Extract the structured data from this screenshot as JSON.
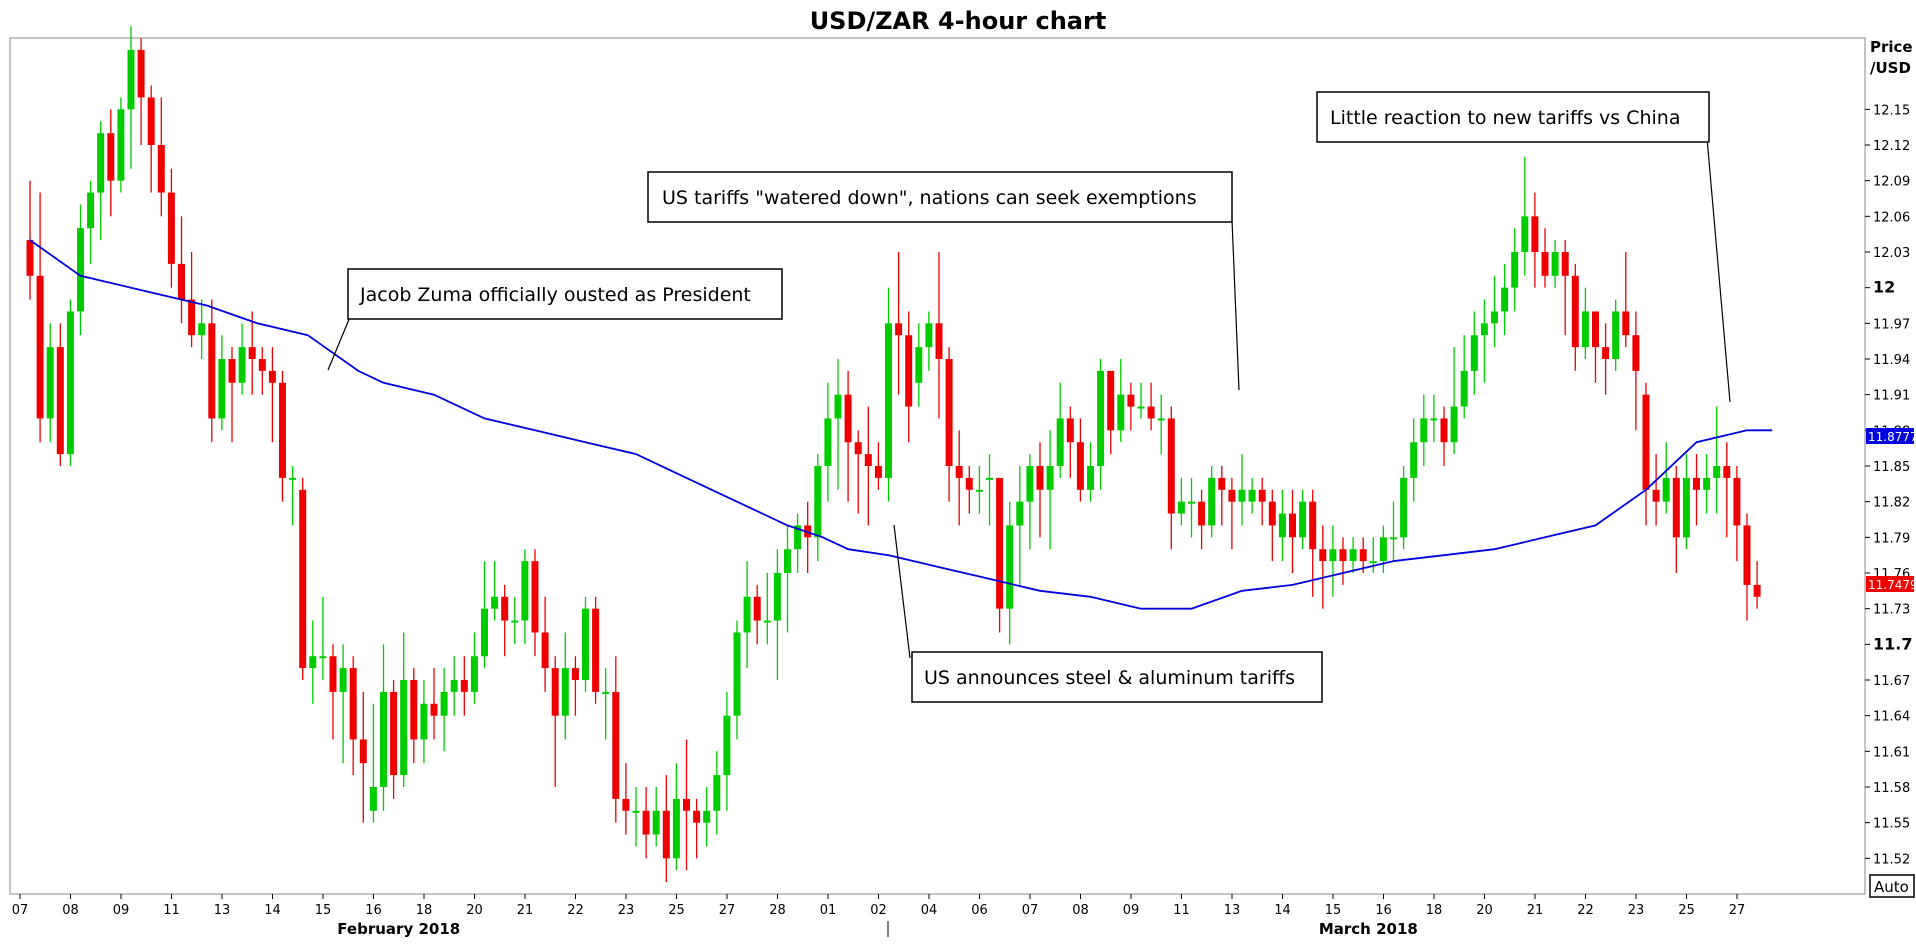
{
  "chart_data": {
    "type": "candlestick",
    "title": "USD/ZAR 4-hour chart",
    "ylabel": "Price\n/USD",
    "ylim": [
      11.49,
      12.21
    ],
    "y_ticks": [
      "12.15",
      "12.12",
      "12.09",
      "12.06",
      "12.03",
      "12",
      "11.97",
      "11.94",
      "11.91",
      "11.88",
      "11.85",
      "11.82",
      "11.79",
      "11.76",
      "11.73",
      "11.7",
      "11.67",
      "11.64",
      "11.61",
      "11.58",
      "11.55",
      "11.52"
    ],
    "x_ticks": [
      "07",
      "08",
      "09",
      "11",
      "13",
      "14",
      "15",
      "16",
      "18",
      "20",
      "21",
      "22",
      "23",
      "25",
      "27",
      "28",
      "01",
      "02",
      "04",
      "06",
      "07",
      "08",
      "09",
      "11",
      "13",
      "14",
      "15",
      "16",
      "18",
      "20",
      "21",
      "22",
      "23",
      "25",
      "27"
    ],
    "months": [
      {
        "label": "February 2018",
        "tick_index": 7.5
      },
      {
        "label": "March 2018",
        "tick_index": 26.7
      }
    ],
    "moving_average": {
      "color": "#0000dd",
      "points": [
        [
          0,
          12.04
        ],
        [
          1,
          12.01
        ],
        [
          2,
          12.0
        ],
        [
          3,
          11.99
        ],
        [
          3.5,
          11.985
        ],
        [
          4.5,
          11.97
        ],
        [
          5.5,
          11.96
        ],
        [
          6.5,
          11.93
        ],
        [
          7,
          11.92
        ],
        [
          8,
          11.91
        ],
        [
          9,
          11.89
        ],
        [
          10,
          11.88
        ],
        [
          11,
          11.87
        ],
        [
          12,
          11.86
        ],
        [
          13,
          11.84
        ],
        [
          14,
          11.82
        ],
        [
          15,
          11.8
        ],
        [
          15.7,
          11.79
        ],
        [
          16.2,
          11.78
        ],
        [
          17,
          11.775
        ],
        [
          18,
          11.765
        ],
        [
          19,
          11.755
        ],
        [
          20,
          11.745
        ],
        [
          21,
          11.74
        ],
        [
          22,
          11.73
        ],
        [
          23,
          11.73
        ],
        [
          24,
          11.745
        ],
        [
          25,
          11.75
        ],
        [
          26,
          11.76
        ],
        [
          27,
          11.77
        ],
        [
          28,
          11.775
        ],
        [
          29,
          11.78
        ],
        [
          30,
          11.79
        ],
        [
          31,
          11.8
        ],
        [
          32,
          11.83
        ],
        [
          33,
          11.87
        ],
        [
          34,
          11.88
        ],
        [
          34.5,
          11.88
        ]
      ],
      "last_value": "11.8777"
    },
    "last_price": "11.7479",
    "candles": [
      [
        0.0,
        12.04,
        12.01,
        12.09,
        11.99
      ],
      [
        0.2,
        12.01,
        11.89,
        12.08,
        11.87
      ],
      [
        0.4,
        11.89,
        11.95,
        11.97,
        11.87
      ],
      [
        0.6,
        11.95,
        11.86,
        11.97,
        11.85
      ],
      [
        0.8,
        11.86,
        11.98,
        11.99,
        11.85
      ],
      [
        1.0,
        11.98,
        12.05,
        12.07,
        11.96
      ],
      [
        1.2,
        12.05,
        12.08,
        12.09,
        12.02
      ],
      [
        1.4,
        12.08,
        12.13,
        12.14,
        12.04
      ],
      [
        1.6,
        12.13,
        12.09,
        12.15,
        12.06
      ],
      [
        1.8,
        12.09,
        12.15,
        12.16,
        12.08
      ],
      [
        2.0,
        12.15,
        12.2,
        12.22,
        12.1
      ],
      [
        2.2,
        12.2,
        12.16,
        12.21,
        12.12
      ],
      [
        2.4,
        12.16,
        12.12,
        12.17,
        12.08
      ],
      [
        2.6,
        12.12,
        12.08,
        12.16,
        12.06
      ],
      [
        2.8,
        12.08,
        12.02,
        12.1,
        12.0
      ],
      [
        3.0,
        12.02,
        11.99,
        12.06,
        11.97
      ],
      [
        3.2,
        11.99,
        11.96,
        12.03,
        11.95
      ],
      [
        3.4,
        11.96,
        11.97,
        11.99,
        11.94
      ],
      [
        3.6,
        11.97,
        11.89,
        11.99,
        11.87
      ],
      [
        3.8,
        11.89,
        11.94,
        11.96,
        11.88
      ],
      [
        4.0,
        11.94,
        11.92,
        11.95,
        11.87
      ],
      [
        4.2,
        11.92,
        11.95,
        11.97,
        11.91
      ],
      [
        4.4,
        11.95,
        11.94,
        11.98,
        11.91
      ],
      [
        4.6,
        11.94,
        11.93,
        11.95,
        11.91
      ],
      [
        4.8,
        11.93,
        11.92,
        11.95,
        11.87
      ],
      [
        5.0,
        11.92,
        11.84,
        11.93,
        11.82
      ],
      [
        5.2,
        11.84,
        11.84,
        11.85,
        11.8
      ],
      [
        5.4,
        11.83,
        11.68,
        11.84,
        11.67
      ],
      [
        5.6,
        11.68,
        11.69,
        11.72,
        11.65
      ],
      [
        5.8,
        11.69,
        11.69,
        11.74,
        11.67
      ],
      [
        6.0,
        11.69,
        11.66,
        11.7,
        11.62
      ],
      [
        6.2,
        11.66,
        11.68,
        11.7,
        11.6
      ],
      [
        6.4,
        11.68,
        11.62,
        11.69,
        11.59
      ],
      [
        6.6,
        11.62,
        11.6,
        11.66,
        11.55
      ],
      [
        6.8,
        11.56,
        11.58,
        11.65,
        11.55
      ],
      [
        7.0,
        11.58,
        11.66,
        11.7,
        11.56
      ],
      [
        7.2,
        11.66,
        11.59,
        11.67,
        11.57
      ],
      [
        7.4,
        11.59,
        11.67,
        11.71,
        11.58
      ],
      [
        7.6,
        11.67,
        11.62,
        11.68,
        11.6
      ],
      [
        7.8,
        11.62,
        11.65,
        11.67,
        11.6
      ],
      [
        8.0,
        11.65,
        11.64,
        11.68,
        11.62
      ],
      [
        8.2,
        11.64,
        11.66,
        11.68,
        11.61
      ],
      [
        8.4,
        11.66,
        11.67,
        11.69,
        11.64
      ],
      [
        8.6,
        11.67,
        11.66,
        11.69,
        11.64
      ],
      [
        8.8,
        11.66,
        11.69,
        11.71,
        11.65
      ],
      [
        9.0,
        11.69,
        11.73,
        11.77,
        11.68
      ],
      [
        9.2,
        11.73,
        11.74,
        11.77,
        11.72
      ],
      [
        9.4,
        11.74,
        11.72,
        11.75,
        11.69
      ],
      [
        9.6,
        11.72,
        11.72,
        11.74,
        11.7
      ],
      [
        9.8,
        11.72,
        11.77,
        11.78,
        11.7
      ],
      [
        10.0,
        11.77,
        11.71,
        11.78,
        11.69
      ],
      [
        10.2,
        11.71,
        11.68,
        11.74,
        11.66
      ],
      [
        10.4,
        11.68,
        11.64,
        11.69,
        11.58
      ],
      [
        10.6,
        11.64,
        11.68,
        11.71,
        11.62
      ],
      [
        10.8,
        11.68,
        11.67,
        11.69,
        11.64
      ],
      [
        11.0,
        11.67,
        11.73,
        11.74,
        11.66
      ],
      [
        11.2,
        11.73,
        11.66,
        11.74,
        11.65
      ],
      [
        11.4,
        11.66,
        11.66,
        11.68,
        11.62
      ],
      [
        11.6,
        11.66,
        11.57,
        11.69,
        11.55
      ],
      [
        11.8,
        11.57,
        11.56,
        11.6,
        11.54
      ],
      [
        12.0,
        11.56,
        11.56,
        11.58,
        11.53
      ],
      [
        12.2,
        11.56,
        11.54,
        11.58,
        11.52
      ],
      [
        12.4,
        11.54,
        11.56,
        11.58,
        11.53
      ],
      [
        12.6,
        11.56,
        11.52,
        11.59,
        11.5
      ],
      [
        12.8,
        11.52,
        11.57,
        11.6,
        11.51
      ],
      [
        13.0,
        11.57,
        11.56,
        11.62,
        11.51
      ],
      [
        13.2,
        11.56,
        11.55,
        11.57,
        11.52
      ],
      [
        13.4,
        11.55,
        11.56,
        11.58,
        11.53
      ],
      [
        13.6,
        11.56,
        11.59,
        11.61,
        11.54
      ],
      [
        13.8,
        11.59,
        11.64,
        11.66,
        11.56
      ],
      [
        14.0,
        11.64,
        11.71,
        11.72,
        11.62
      ],
      [
        14.2,
        11.71,
        11.74,
        11.77,
        11.68
      ],
      [
        14.4,
        11.74,
        11.72,
        11.75,
        11.7
      ],
      [
        14.6,
        11.72,
        11.72,
        11.76,
        11.7
      ],
      [
        14.8,
        11.72,
        11.76,
        11.78,
        11.67
      ],
      [
        15.0,
        11.76,
        11.78,
        11.8,
        11.71
      ],
      [
        15.2,
        11.78,
        11.8,
        11.81,
        11.76
      ],
      [
        15.4,
        11.8,
        11.79,
        11.82,
        11.76
      ],
      [
        15.6,
        11.79,
        11.85,
        11.86,
        11.77
      ],
      [
        15.8,
        11.85,
        11.89,
        11.92,
        11.82
      ],
      [
        16.0,
        11.89,
        11.91,
        11.94,
        11.83
      ],
      [
        16.2,
        11.91,
        11.87,
        11.93,
        11.82
      ],
      [
        16.4,
        11.87,
        11.86,
        11.88,
        11.81
      ],
      [
        16.6,
        11.86,
        11.85,
        11.9,
        11.8
      ],
      [
        16.8,
        11.85,
        11.84,
        11.87,
        11.83
      ],
      [
        17.0,
        11.84,
        11.97,
        12.0,
        11.82
      ],
      [
        17.2,
        11.97,
        11.96,
        12.03,
        11.91
      ],
      [
        17.4,
        11.96,
        11.9,
        11.98,
        11.87
      ],
      [
        17.6,
        11.92,
        11.95,
        11.97,
        11.9
      ],
      [
        17.8,
        11.95,
        11.97,
        11.98,
        11.93
      ],
      [
        18.0,
        11.97,
        11.94,
        12.03,
        11.89
      ],
      [
        18.2,
        11.94,
        11.85,
        11.95,
        11.82
      ],
      [
        18.4,
        11.85,
        11.84,
        11.88,
        11.8
      ],
      [
        18.6,
        11.84,
        11.83,
        11.85,
        11.81
      ],
      [
        18.8,
        11.83,
        11.83,
        11.85,
        11.81
      ],
      [
        19.0,
        11.84,
        11.84,
        11.86,
        11.8
      ],
      [
        19.2,
        11.84,
        11.73,
        11.84,
        11.71
      ],
      [
        19.4,
        11.73,
        11.8,
        11.82,
        11.7
      ],
      [
        19.6,
        11.8,
        11.82,
        11.85,
        11.75
      ],
      [
        19.8,
        11.82,
        11.85,
        11.86,
        11.78
      ],
      [
        20.0,
        11.85,
        11.83,
        11.87,
        11.79
      ],
      [
        20.2,
        11.83,
        11.85,
        11.88,
        11.78
      ],
      [
        20.4,
        11.85,
        11.89,
        11.92,
        11.84
      ],
      [
        20.6,
        11.89,
        11.87,
        11.9,
        11.84
      ],
      [
        20.8,
        11.87,
        11.83,
        11.89,
        11.82
      ],
      [
        21.0,
        11.83,
        11.85,
        11.87,
        11.82
      ],
      [
        21.2,
        11.85,
        11.93,
        11.94,
        11.83
      ],
      [
        21.4,
        11.93,
        11.88,
        11.93,
        11.86
      ],
      [
        21.6,
        11.88,
        11.91,
        11.94,
        11.87
      ],
      [
        21.8,
        11.91,
        11.9,
        11.92,
        11.88
      ],
      [
        22.0,
        11.9,
        11.9,
        11.92,
        11.89
      ],
      [
        22.2,
        11.9,
        11.89,
        11.92,
        11.88
      ],
      [
        22.4,
        11.89,
        11.89,
        11.91,
        11.86
      ],
      [
        22.6,
        11.89,
        11.81,
        11.9,
        11.78
      ],
      [
        22.8,
        11.81,
        11.82,
        11.84,
        11.8
      ],
      [
        23.0,
        11.82,
        11.82,
        11.84,
        11.79
      ],
      [
        23.2,
        11.82,
        11.8,
        11.83,
        11.78
      ],
      [
        23.4,
        11.8,
        11.84,
        11.85,
        11.79
      ],
      [
        23.6,
        11.84,
        11.83,
        11.85,
        11.8
      ],
      [
        23.8,
        11.83,
        11.82,
        11.84,
        11.78
      ],
      [
        24.0,
        11.82,
        11.83,
        11.86,
        11.8
      ],
      [
        24.2,
        11.82,
        11.83,
        11.84,
        11.81
      ],
      [
        24.4,
        11.83,
        11.82,
        11.84,
        11.8
      ],
      [
        24.6,
        11.82,
        11.8,
        11.83,
        11.77
      ],
      [
        24.8,
        11.79,
        11.81,
        11.83,
        11.77
      ],
      [
        25.0,
        11.81,
        11.79,
        11.83,
        11.76
      ],
      [
        25.2,
        11.79,
        11.82,
        11.83,
        11.78
      ],
      [
        25.4,
        11.82,
        11.78,
        11.83,
        11.74
      ],
      [
        25.6,
        11.78,
        11.77,
        11.8,
        11.73
      ],
      [
        25.8,
        11.77,
        11.78,
        11.8,
        11.74
      ],
      [
        26.0,
        11.78,
        11.77,
        11.79,
        11.75
      ],
      [
        26.2,
        11.77,
        11.78,
        11.79,
        11.76
      ],
      [
        26.4,
        11.78,
        11.77,
        11.79,
        11.76
      ],
      [
        26.6,
        11.77,
        11.77,
        11.79,
        11.76
      ],
      [
        26.8,
        11.77,
        11.79,
        11.8,
        11.76
      ],
      [
        27.0,
        11.79,
        11.79,
        11.82,
        11.77
      ],
      [
        27.2,
        11.79,
        11.84,
        11.85,
        11.78
      ],
      [
        27.4,
        11.84,
        11.87,
        11.89,
        11.82
      ],
      [
        27.6,
        11.87,
        11.89,
        11.91,
        11.85
      ],
      [
        27.8,
        11.89,
        11.89,
        11.91,
        11.87
      ],
      [
        28.0,
        11.89,
        11.87,
        11.9,
        11.85
      ],
      [
        28.2,
        11.87,
        11.9,
        11.95,
        11.86
      ],
      [
        28.4,
        11.9,
        11.93,
        11.96,
        11.89
      ],
      [
        28.6,
        11.93,
        11.96,
        11.98,
        11.91
      ],
      [
        28.8,
        11.96,
        11.97,
        11.99,
        11.92
      ],
      [
        29.0,
        11.97,
        11.98,
        12.01,
        11.95
      ],
      [
        29.2,
        11.98,
        12.0,
        12.02,
        11.96
      ],
      [
        29.4,
        12.0,
        12.03,
        12.05,
        11.98
      ],
      [
        29.6,
        12.03,
        12.06,
        12.11,
        12.01
      ],
      [
        29.8,
        12.06,
        12.03,
        12.08,
        12.0
      ],
      [
        30.0,
        12.03,
        12.01,
        12.05,
        12.0
      ],
      [
        30.2,
        12.01,
        12.03,
        12.04,
        12.0
      ],
      [
        30.4,
        12.03,
        12.01,
        12.04,
        11.96
      ],
      [
        30.6,
        12.01,
        11.95,
        12.02,
        11.93
      ],
      [
        30.8,
        11.95,
        11.98,
        12.0,
        11.94
      ],
      [
        31.0,
        11.98,
        11.95,
        11.98,
        11.92
      ],
      [
        31.2,
        11.95,
        11.94,
        11.97,
        11.91
      ],
      [
        31.4,
        11.94,
        11.98,
        11.99,
        11.93
      ],
      [
        31.6,
        11.98,
        11.96,
        12.03,
        11.95
      ],
      [
        31.8,
        11.96,
        11.93,
        11.98,
        11.88
      ],
      [
        32.0,
        11.91,
        11.83,
        11.92,
        11.8
      ],
      [
        32.2,
        11.83,
        11.82,
        11.86,
        11.8
      ],
      [
        32.4,
        11.82,
        11.84,
        11.87,
        11.81
      ],
      [
        32.6,
        11.84,
        11.79,
        11.85,
        11.76
      ],
      [
        32.8,
        11.79,
        11.84,
        11.86,
        11.78
      ],
      [
        33.0,
        11.84,
        11.83,
        11.86,
        11.8
      ],
      [
        33.2,
        11.83,
        11.84,
        11.86,
        11.81
      ],
      [
        33.4,
        11.84,
        11.85,
        11.9,
        11.81
      ],
      [
        33.6,
        11.85,
        11.84,
        11.87,
        11.79
      ],
      [
        33.8,
        11.84,
        11.8,
        11.85,
        11.77
      ],
      [
        34.0,
        11.8,
        11.75,
        11.81,
        11.72
      ],
      [
        34.2,
        11.75,
        11.74,
        11.77,
        11.73
      ]
    ],
    "annotations": [
      {
        "text": "Jacob Zuma officially ousted as President"
      },
      {
        "text": "US tariffs \"watered down\", nations can seek exemptions"
      },
      {
        "text": "Little reaction to new tariffs vs China"
      },
      {
        "text": "US announces steel & aluminum tariffs"
      }
    ],
    "up_color": "#00cc00",
    "down_color": "#ee0000",
    "auto_label": "Auto"
  }
}
